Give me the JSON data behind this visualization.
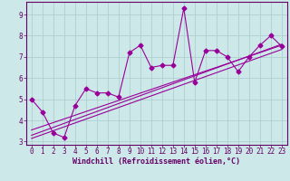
{
  "x_data": [
    0,
    1,
    2,
    3,
    4,
    5,
    6,
    7,
    8,
    9,
    10,
    11,
    12,
    13,
    14,
    15,
    16,
    17,
    18,
    19,
    20,
    21,
    22,
    23
  ],
  "y_scatter": [
    5.0,
    4.4,
    3.4,
    3.2,
    4.7,
    5.5,
    5.3,
    5.3,
    5.1,
    7.2,
    7.55,
    6.5,
    6.6,
    6.6,
    9.3,
    5.8,
    7.3,
    7.3,
    7.0,
    6.3,
    7.0,
    7.55,
    8.0,
    7.5
  ],
  "regression_lines": [
    {
      "x0": 0,
      "y0": 3.15,
      "x1": 23,
      "y1": 7.35
    },
    {
      "x0": 0,
      "y0": 3.3,
      "x1": 23,
      "y1": 7.6
    },
    {
      "x0": 0,
      "y0": 3.55,
      "x1": 23,
      "y1": 7.55
    }
  ],
  "line_color": "#990099",
  "bg_color": "#cce8e8",
  "grid_color": "#aacccc",
  "spine_color": "#660066",
  "tick_color": "#660066",
  "label_color": "#660066",
  "xlim_min": -0.5,
  "xlim_max": 23.5,
  "ylim_min": 2.85,
  "ylim_max": 9.6,
  "yticks": [
    3,
    4,
    5,
    6,
    7,
    8,
    9
  ],
  "xticks": [
    0,
    1,
    2,
    3,
    4,
    5,
    6,
    7,
    8,
    9,
    10,
    11,
    12,
    13,
    14,
    15,
    16,
    17,
    18,
    19,
    20,
    21,
    22,
    23
  ],
  "xlabel": "Windchill (Refroidissement éolien,°C)",
  "marker": "D",
  "markersize": 2.5,
  "linewidth": 0.8,
  "tick_fontsize": 5.5,
  "xlabel_fontsize": 6.0
}
